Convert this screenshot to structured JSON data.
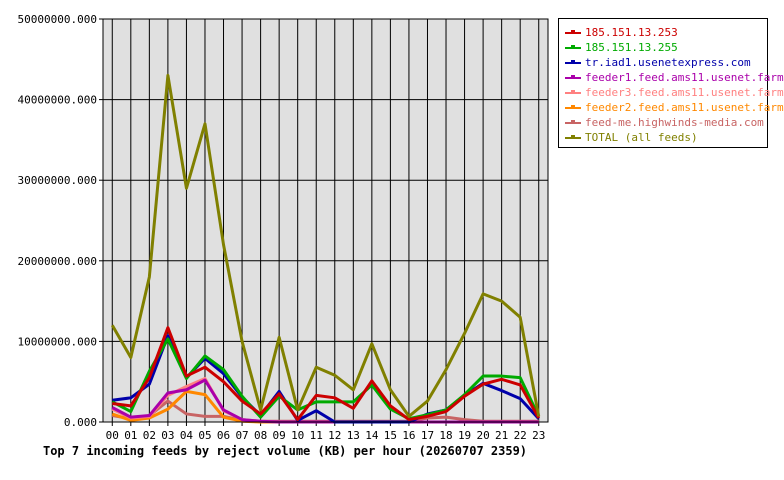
{
  "chart_data": {
    "type": "line",
    "title": "Top 7 incoming feeds by reject volume (KB) per hour (20260707 2359)",
    "x": [
      "00",
      "01",
      "02",
      "03",
      "04",
      "05",
      "06",
      "07",
      "08",
      "09",
      "10",
      "11",
      "12",
      "13",
      "14",
      "15",
      "16",
      "17",
      "18",
      "19",
      "20",
      "21",
      "22",
      "23"
    ],
    "y_ticks": [
      "0.000",
      "10000000.000",
      "20000000.000",
      "30000000.000",
      "40000000.000",
      "50000000.000"
    ],
    "ylim": [
      0,
      50000000
    ],
    "grid": true,
    "legend_position": "right",
    "series": [
      {
        "name": "185.151.13.253",
        "color": "#cc0000",
        "values": [
          2300000,
          2000000,
          5500000,
          11700000,
          5700000,
          6800000,
          5000000,
          2600000,
          1000000,
          3500000,
          300000,
          3300000,
          3000000,
          1700000,
          5100000,
          2000000,
          300000,
          700000,
          1300000,
          3200000,
          4700000,
          5300000,
          4600000,
          500000
        ]
      },
      {
        "name": "185.151.13.255",
        "color": "#00aa00",
        "values": [
          2500000,
          1300000,
          6300000,
          10300000,
          5400000,
          8200000,
          6500000,
          3200000,
          600000,
          3200000,
          1500000,
          2500000,
          2500000,
          2500000,
          4600000,
          1600000,
          400000,
          900000,
          1500000,
          3400000,
          5700000,
          5700000,
          5500000,
          700000
        ]
      },
      {
        "name": "tr.iad1.usenetexpress.com",
        "color": "#0000aa",
        "values": [
          2700000,
          3000000,
          4700000,
          10700000,
          5500000,
          7900000,
          6000000,
          3100000,
          800000,
          3800000,
          200000,
          1400000,
          0,
          0,
          0,
          0,
          0,
          1000000,
          1500000,
          3300000,
          4800000,
          3900000,
          2900000,
          400000
        ]
      },
      {
        "name": "feeder1.feed.ams11.usenet.farm",
        "color": "#aa00aa",
        "values": [
          1800000,
          600000,
          800000,
          3600000,
          4000000,
          5200000,
          1500000,
          300000,
          100000,
          0,
          0,
          0,
          0,
          0,
          0,
          0,
          0,
          0,
          0,
          0,
          0,
          0,
          0,
          0
        ]
      },
      {
        "name": "feeder3.feed.ams11.usenet.farm",
        "color": "#ff8080",
        "values": [
          1600000,
          500000,
          700000,
          3300000,
          4400000,
          5400000,
          1400000,
          300000,
          100000,
          0,
          0,
          0,
          0,
          0,
          0,
          0,
          0,
          0,
          0,
          0,
          0,
          0,
          0,
          0
        ]
      },
      {
        "name": "feeder2.feed.ams11.usenet.farm",
        "color": "#ff8800",
        "values": [
          1000000,
          200000,
          500000,
          1600000,
          3800000,
          3400000,
          600000,
          100000,
          0,
          0,
          0,
          0,
          0,
          0,
          0,
          0,
          0,
          0,
          0,
          0,
          0,
          0,
          0,
          0
        ]
      },
      {
        "name": "feed-me.highwinds-media.com",
        "color": "#c86464",
        "values": [
          800000,
          400000,
          800000,
          2600000,
          1000000,
          700000,
          700000,
          200000,
          100000,
          100000,
          100000,
          100000,
          100000,
          100000,
          100000,
          100000,
          100000,
          500000,
          600000,
          300000,
          100000,
          100000,
          100000,
          100000
        ]
      },
      {
        "name": "TOTAL (all feeds)",
        "color": "#808000",
        "values": [
          12000000,
          8000000,
          18000000,
          43000000,
          29000000,
          37000000,
          22000000,
          10000000,
          1500000,
          10500000,
          1500000,
          6800000,
          5800000,
          4000000,
          9700000,
          4000000,
          700000,
          2600000,
          6500000,
          11000000,
          15900000,
          15000000,
          13000000,
          700000
        ]
      }
    ]
  }
}
